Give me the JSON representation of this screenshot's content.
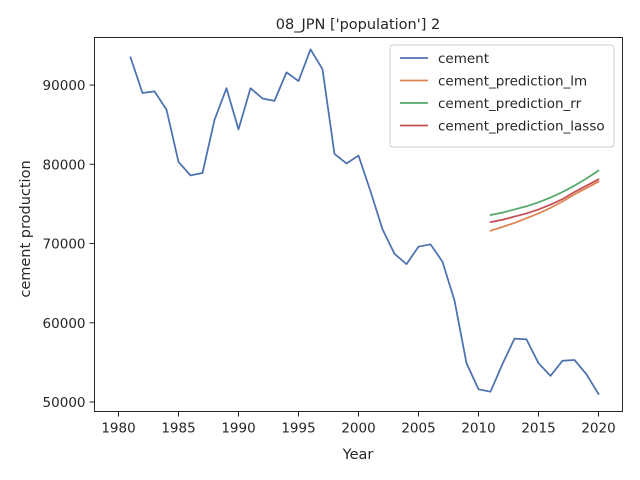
{
  "chart_data": {
    "type": "line",
    "title": "08_JPN ['population'] 2",
    "xlabel": "Year",
    "ylabel": "cement production",
    "xlim": [
      1978,
      2022
    ],
    "ylim": [
      48800,
      96000
    ],
    "xticks": [
      1980,
      1985,
      1990,
      1995,
      2000,
      2005,
      2010,
      2015,
      2020
    ],
    "yticks": [
      50000,
      60000,
      70000,
      80000,
      90000
    ],
    "grid": false,
    "legend_position": "top-right",
    "series": [
      {
        "name": "cement",
        "color": "#4c72b0",
        "x": [
          1981,
          1982,
          1983,
          1984,
          1985,
          1986,
          1987,
          1988,
          1989,
          1990,
          1991,
          1992,
          1993,
          1994,
          1995,
          1996,
          1997,
          1998,
          1999,
          2000,
          2001,
          2002,
          2003,
          2004,
          2005,
          2006,
          2007,
          2008,
          2009,
          2010,
          2011,
          2012,
          2013,
          2014,
          2015,
          2016,
          2017,
          2018,
          2019,
          2020
        ],
        "y": [
          93500,
          89000,
          89200,
          86900,
          80300,
          78600,
          78900,
          85600,
          89600,
          84400,
          89600,
          88300,
          88000,
          91600,
          90500,
          94500,
          92000,
          81300,
          80100,
          81100,
          76600,
          71800,
          68700,
          67400,
          69600,
          69900,
          67700,
          62800,
          54900,
          51600,
          51300,
          54800,
          58000,
          57900,
          54900,
          53300,
          55200,
          55300,
          53500,
          51000
        ]
      },
      {
        "name": "cement_prediction_lm",
        "color": "#dd8452",
        "x": [
          2011,
          2012,
          2013,
          2014,
          2015,
          2016,
          2017,
          2018,
          2019,
          2020
        ],
        "y": [
          71600,
          72100,
          72600,
          73200,
          73800,
          74500,
          75300,
          76200,
          77000,
          77800
        ]
      },
      {
        "name": "cement_prediction_rr",
        "color": "#55a868",
        "x": [
          2011,
          2012,
          2013,
          2014,
          2015,
          2016,
          2017,
          2018,
          2019,
          2020
        ],
        "y": [
          73600,
          73900,
          74300,
          74700,
          75200,
          75800,
          76500,
          77300,
          78200,
          79200
        ]
      },
      {
        "name": "cement_prediction_lasso",
        "color": "#c44e52",
        "x": [
          2011,
          2012,
          2013,
          2014,
          2015,
          2016,
          2017,
          2018,
          2019,
          2020
        ],
        "y": [
          72700,
          73000,
          73400,
          73800,
          74300,
          74900,
          75600,
          76500,
          77300,
          78100
        ]
      }
    ]
  }
}
